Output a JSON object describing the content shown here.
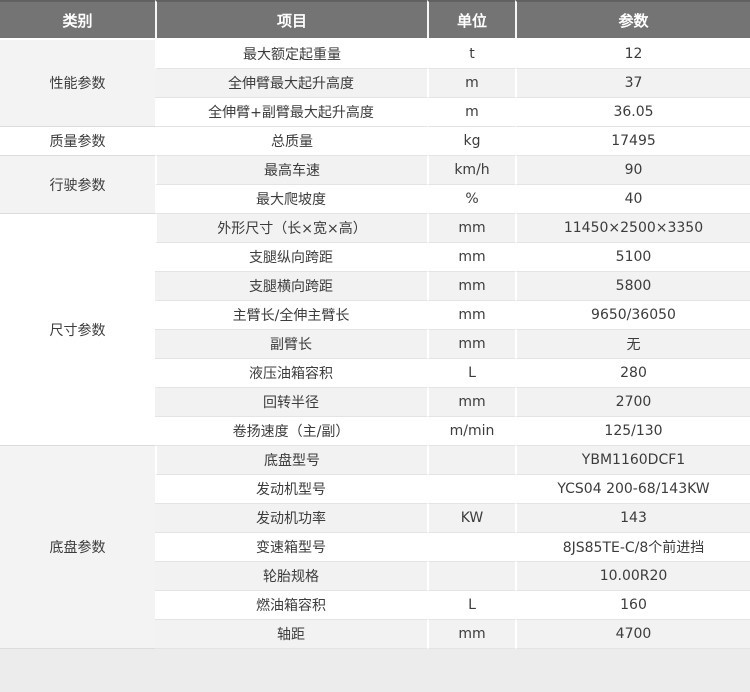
{
  "table": {
    "headers": [
      {
        "label": "类别"
      },
      {
        "label": "项目"
      },
      {
        "label": "单位"
      },
      {
        "label": "参数"
      }
    ],
    "sections": [
      {
        "category": "性能参数",
        "shaded": true,
        "rows": [
          {
            "item": "最大额定起重量",
            "unit": "t",
            "value": "12",
            "shaded": false
          },
          {
            "item": "全伸臂最大起升高度",
            "unit": "m",
            "value": "37",
            "shaded": true
          },
          {
            "item": "全伸臂+副臂最大起升高度",
            "unit": "m",
            "value": "36.05",
            "shaded": false
          }
        ]
      },
      {
        "category": "质量参数",
        "shaded": false,
        "rows": [
          {
            "item": "总质量",
            "unit": "kg",
            "value": "17495",
            "shaded": false
          }
        ]
      },
      {
        "category": "行驶参数",
        "shaded": true,
        "rows": [
          {
            "item": "最高车速",
            "unit": "km/h",
            "value": "90",
            "shaded": true
          },
          {
            "item": "最大爬坡度",
            "unit": "%",
            "value": "40",
            "shaded": false
          }
        ]
      },
      {
        "category": "尺寸参数",
        "shaded": false,
        "rows": [
          {
            "item": "外形尺寸（长×宽×高）",
            "unit": "mm",
            "value": "11450×2500×3350",
            "shaded": true
          },
          {
            "item": "支腿纵向跨距",
            "unit": "mm",
            "value": "5100",
            "shaded": false
          },
          {
            "item": "支腿横向跨距",
            "unit": "mm",
            "value": "5800",
            "shaded": true
          },
          {
            "item": "主臂长/全伸主臂长",
            "unit": "mm",
            "value": "9650/36050",
            "shaded": false
          },
          {
            "item": "副臂长",
            "unit": "mm",
            "value": "无",
            "shaded": true
          },
          {
            "item": "液压油箱容积",
            "unit": "L",
            "value": "280",
            "shaded": false
          },
          {
            "item": "回转半径",
            "unit": "mm",
            "value": "2700",
            "shaded": true
          },
          {
            "item": "卷扬速度（主/副）",
            "unit": "m/min",
            "value": "125/130",
            "shaded": false
          }
        ]
      },
      {
        "category": "底盘参数",
        "shaded": true,
        "rows": [
          {
            "item": "底盘型号",
            "unit": "",
            "value": "YBM1160DCF1",
            "shaded": true
          },
          {
            "item": "发动机型号",
            "unit": "",
            "value": "YCS04 200-68/143KW",
            "shaded": false
          },
          {
            "item": "发动机功率",
            "unit": "KW",
            "value": "143",
            "shaded": true
          },
          {
            "item": "变速箱型号",
            "unit": "",
            "value": "8JS85TE-C/8个前进挡",
            "shaded": false
          },
          {
            "item": "轮胎规格",
            "unit": "",
            "value": "10.00R20",
            "shaded": true
          },
          {
            "item": "燃油箱容积",
            "unit": "L",
            "value": "160",
            "shaded": false
          },
          {
            "item": "轴距",
            "unit": "mm",
            "value": "4700",
            "shaded": true
          }
        ]
      }
    ],
    "colors": {
      "header_bg": "#747474",
      "header_text": "#ffffff",
      "row_shaded": "#f2f2f2",
      "row_plain": "#ffffff",
      "border": "#e4e4e4",
      "page_bg": "#ececec",
      "text": "#3c3c3c"
    }
  }
}
